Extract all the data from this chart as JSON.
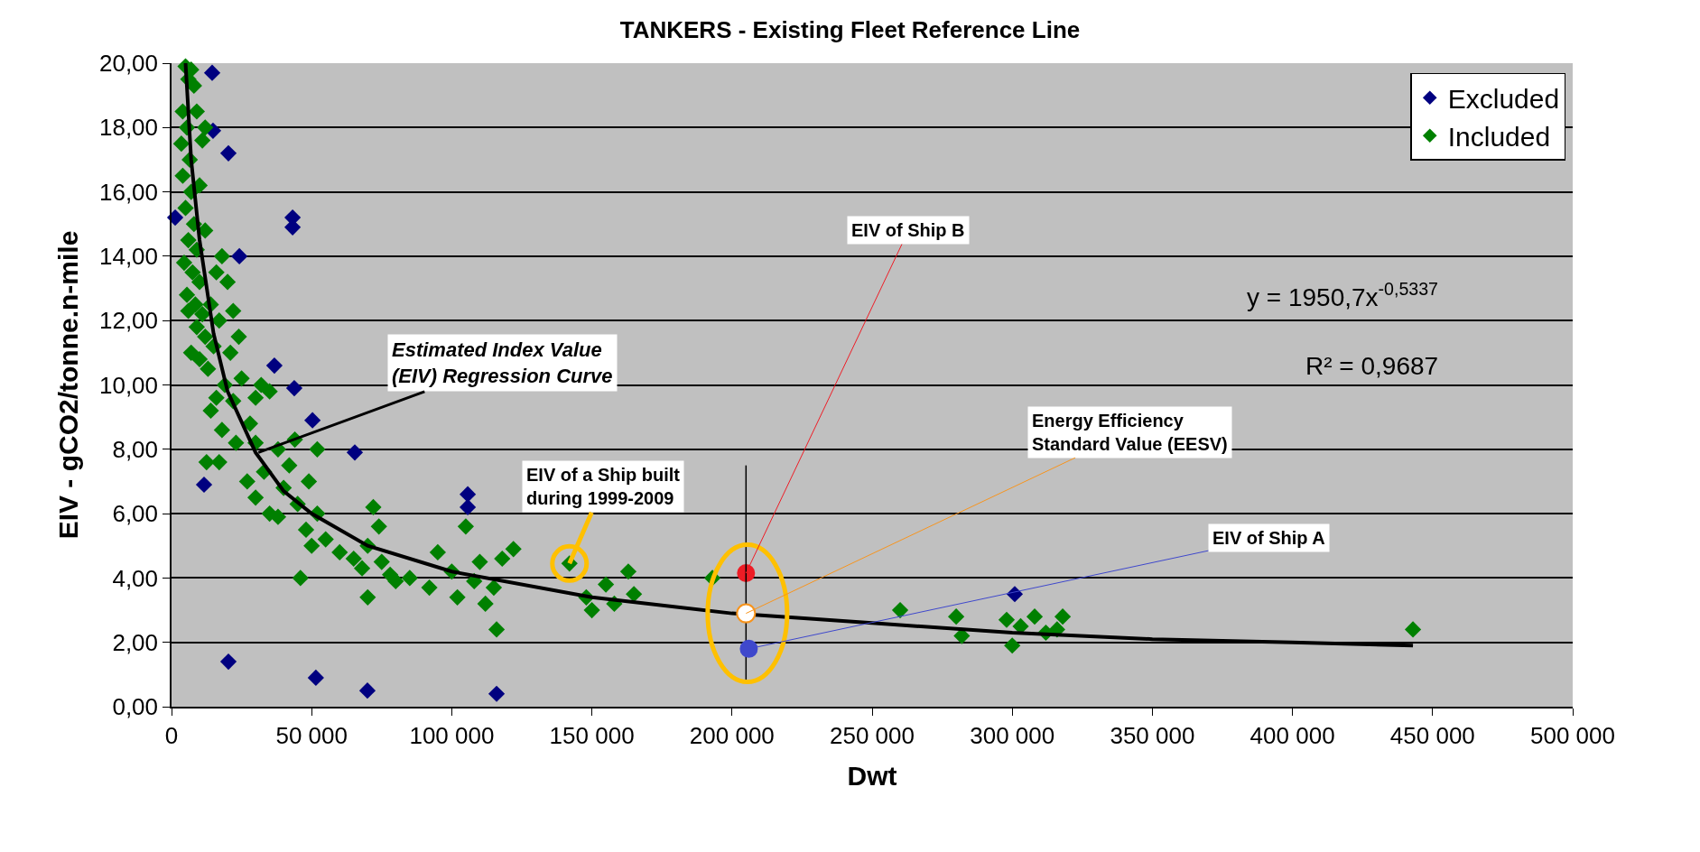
{
  "chart_data": {
    "type": "scatter",
    "title": "TANKERS - Existing Fleet Reference Line",
    "xlabel": "Dwt",
    "ylabel": "EIV - gCO2/tonne.n-mile",
    "xlim": [
      0,
      500000
    ],
    "ylim": [
      0,
      20
    ],
    "xticks": [
      0,
      {
        "value": 50000,
        "label": "50 000"
      },
      {
        "value": 100000,
        "label": "100 000"
      },
      {
        "value": 150000,
        "label": "150 000"
      },
      {
        "value": 200000,
        "label": "200 000"
      },
      {
        "value": 250000,
        "label": "250 000"
      },
      {
        "value": 300000,
        "label": "300 000"
      },
      {
        "value": 350000,
        "label": "350 000"
      },
      {
        "value": 400000,
        "label": "400 000"
      },
      {
        "value": 450000,
        "label": "450 000"
      },
      {
        "value": 500000,
        "label": "500 000"
      }
    ],
    "yticks": [
      {
        "value": 0,
        "label": "0,00"
      },
      {
        "value": 2,
        "label": "2,00"
      },
      {
        "value": 4,
        "label": "4,00"
      },
      {
        "value": 6,
        "label": "6,00"
      },
      {
        "value": 8,
        "label": "8,00"
      },
      {
        "value": 10,
        "label": "10,00"
      },
      {
        "value": 12,
        "label": "12,00"
      },
      {
        "value": 14,
        "label": "14,00"
      },
      {
        "value": 16,
        "label": "16,00"
      },
      {
        "value": 18,
        "label": "18,00"
      },
      {
        "value": 20,
        "label": "20,00"
      }
    ],
    "grid": "y",
    "legend": "top right",
    "marker": "diamond",
    "series": [
      {
        "name": "Excluded",
        "type": "scatter",
        "color": "#000080",
        "x": [
          14500,
          14800,
          20300,
          1300,
          43200,
          43200,
          24200,
          36700,
          43800,
          50300,
          65400,
          11600,
          105700,
          105700,
          20300,
          51500,
          69900,
          116000,
          300900
        ],
        "values": [
          19.7,
          17.9,
          17.2,
          15.2,
          15.2,
          14.9,
          14.0,
          10.6,
          9.9,
          8.9,
          7.9,
          6.9,
          6.6,
          6.2,
          1.4,
          0.9,
          0.5,
          0.4,
          3.5
        ]
      },
      {
        "name": "Included",
        "type": "scatter",
        "color": "#008000",
        "x": [
          5000,
          6000,
          7000,
          4000,
          5500,
          3500,
          6500,
          4000,
          7000,
          5000,
          8000,
          6000,
          9000,
          4500,
          7500,
          10000,
          5500,
          8500,
          11000,
          6000,
          9000,
          12000,
          7000,
          10000,
          13000,
          15000,
          14000,
          16000,
          12000,
          10000,
          11000,
          9000,
          8000,
          12000,
          17000,
          18000,
          20000,
          22000,
          21000,
          19000,
          16000,
          14000,
          18000,
          22000,
          24000,
          25000,
          23000,
          17000,
          12500,
          28000,
          30000,
          32000,
          35000,
          30000,
          33000,
          27000,
          30000,
          35000,
          38000,
          40000,
          42000,
          38000,
          45000,
          48000,
          50000,
          46000,
          52000,
          52000,
          55000,
          49000,
          44000,
          60000,
          65000,
          68000,
          70000,
          72000,
          74000,
          70000,
          75000,
          78000,
          80000,
          85000,
          92000,
          95000,
          100000,
          102000,
          105000,
          108000,
          110000,
          112000,
          115000,
          116000,
          118000,
          122000,
          142000,
          148000,
          150000,
          155000,
          158000,
          163000,
          165000,
          193000,
          260000,
          280000,
          282000,
          298000,
          300000,
          303000,
          308000,
          312000,
          318000,
          316000,
          443000
        ],
        "values": [
          19.9,
          19.5,
          19.8,
          18.5,
          18,
          17.5,
          17,
          16.5,
          16,
          15.5,
          15,
          14.5,
          14.2,
          13.8,
          13.5,
          13.2,
          12.8,
          12.5,
          12.2,
          12.3,
          11.8,
          11.5,
          11,
          10.8,
          10.5,
          11.2,
          12.5,
          13.5,
          14.8,
          16.2,
          17.6,
          18.5,
          19.3,
          18,
          12,
          14,
          13.2,
          12.3,
          11,
          10,
          9.6,
          9.2,
          8.6,
          9.5,
          11.5,
          10.2,
          8.2,
          7.6,
          7.6,
          8.8,
          9.6,
          10,
          9.8,
          8.2,
          7.3,
          7,
          6.5,
          6,
          5.9,
          6.8,
          7.5,
          8,
          6.3,
          5.5,
          5,
          4,
          8,
          6,
          5.2,
          7,
          8.3,
          4.8,
          4.6,
          4.3,
          5,
          6.2,
          5.6,
          3.4,
          4.5,
          4.1,
          3.9,
          4.0,
          3.7,
          4.8,
          4.2,
          3.4,
          5.6,
          3.9,
          4.5,
          3.2,
          3.7,
          2.4,
          4.6,
          4.9,
          4.45,
          3.4,
          3.0,
          3.8,
          3.2,
          4.2,
          3.5,
          4.0,
          3.0,
          2.8,
          2.2,
          2.7,
          1.9,
          2.5,
          2.8,
          2.3,
          2.8,
          2.4,
          2.4
        ]
      },
      {
        "type": "line",
        "marker": "none",
        "color": "#000000",
        "x": [
          5000,
          7000,
          10000,
          15000,
          20000,
          30000,
          40000,
          50000,
          70000,
          100000,
          150000,
          200000,
          250000,
          300000,
          350000,
          400000,
          443000
        ],
        "values": [
          20,
          17,
          14.5,
          11.6,
          9.8,
          7.9,
          6.7,
          6.0,
          5.0,
          4.2,
          3.4,
          2.9,
          2.6,
          2.3,
          2.1,
          2.0,
          1.9
        ]
      },
      {
        "type": "scatter",
        "marker": "circle",
        "color": "#ee1c25",
        "x": [
          205000
        ],
        "values": [
          4.15
        ]
      },
      {
        "type": "scatter",
        "marker": "circle",
        "color": "#ffffff",
        "x": [
          205000
        ],
        "values": [
          2.9
        ],
        "errors": [
          [
            0.8,
            7.5
          ]
        ]
      },
      {
        "type": "scatter",
        "marker": "circle",
        "color": "#3f48cc",
        "x": [
          206000
        ],
        "values": [
          1.8
        ]
      }
    ],
    "annotations": [
      {
        "text": "Estimated Index Value\n(EIV) Regression Curve",
        "x": 31000,
        "y": 7.9
      },
      {
        "text": "EIV of a Ship built\nduring 1999-2009",
        "x": 142000,
        "y": 4.45
      },
      {
        "text": "EIV of Ship B",
        "x": 205000,
        "y": 4.15
      },
      {
        "text": "Energy Efficiency\nStandard Value (EESV)",
        "x": 205000,
        "y": 2.9
      },
      {
        "text": "EIV of Ship A",
        "x": 206000,
        "y": 1.8
      },
      "y = 1950,7x$^{-0,5337}$",
      "R² = 0,9687"
    ]
  }
}
